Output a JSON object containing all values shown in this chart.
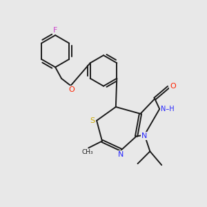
{
  "background_color": "#e8e8e8",
  "bond_color": "#1a1a1a",
  "atom_colors": {
    "F": "#cc44cc",
    "O": "#ff2200",
    "N": "#2222ff",
    "S": "#ccaa00",
    "C": "#1a1a1a",
    "H": "#555555"
  }
}
